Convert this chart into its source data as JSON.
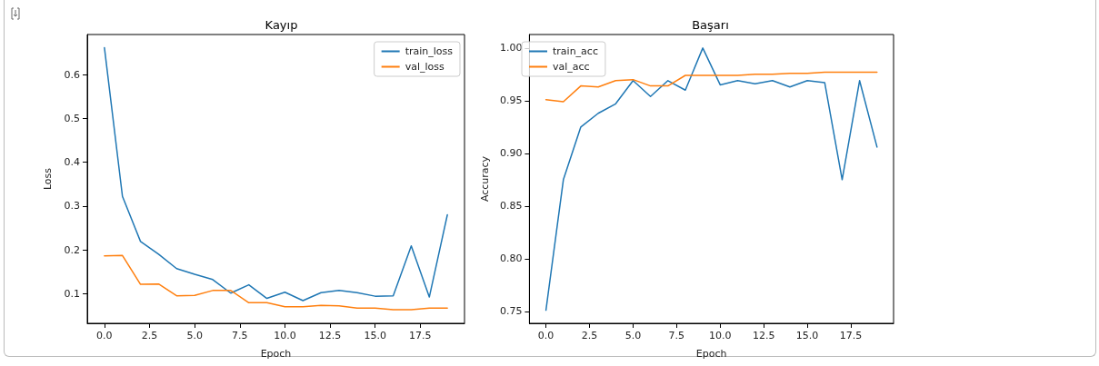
{
  "chart_data": [
    {
      "type": "line",
      "title": "Kayıp",
      "xlabel": "Epoch",
      "ylabel": "Loss",
      "x": [
        0,
        1,
        2,
        3,
        4,
        5,
        6,
        7,
        8,
        9,
        10,
        11,
        12,
        13,
        14,
        15,
        16,
        17,
        18,
        19
      ],
      "series": [
        {
          "name": "train_loss",
          "color": "#1f77b4",
          "values": [
            0.662,
            0.322,
            0.219,
            0.19,
            0.157,
            0.144,
            0.132,
            0.101,
            0.12,
            0.089,
            0.103,
            0.084,
            0.102,
            0.107,
            0.102,
            0.094,
            0.095,
            0.209,
            0.092,
            0.28
          ]
        },
        {
          "name": "val_loss",
          "color": "#ff7f0e",
          "values": [
            0.186,
            0.187,
            0.121,
            0.122,
            0.095,
            0.096,
            0.107,
            0.107,
            0.079,
            0.079,
            0.07,
            0.07,
            0.073,
            0.072,
            0.067,
            0.067,
            0.063,
            0.063,
            0.067,
            0.067
          ]
        }
      ],
      "xlim": [
        -0.95,
        19.95
      ],
      "xticks": [
        {
          "value": 0,
          "label": "0.0"
        },
        2.5,
        {
          "value": 5,
          "label": "5.0"
        },
        7.5,
        {
          "value": 10,
          "label": "10.0"
        },
        12.5,
        {
          "value": 15,
          "label": "15.0"
        },
        17.5
      ],
      "ylim": [
        0.032,
        0.692
      ],
      "yticks": [
        0.1,
        0.2,
        0.3,
        0.4,
        0.5,
        0.6
      ],
      "grid": false,
      "legend": "top right",
      "marker": "none",
      "line_style": "solid"
    },
    {
      "type": "line",
      "title": "Başarı",
      "xlabel": "Epoch",
      "ylabel": "Accuracy",
      "x": [
        0,
        1,
        2,
        3,
        4,
        5,
        6,
        7,
        8,
        9,
        10,
        11,
        12,
        13,
        14,
        15,
        16,
        17,
        18,
        19
      ],
      "series": [
        {
          "name": "train_acc",
          "color": "#1f77b4",
          "values": [
            0.751,
            0.875,
            0.925,
            0.938,
            0.947,
            0.969,
            0.954,
            0.969,
            0.96,
            1.0,
            0.965,
            0.969,
            0.966,
            0.969,
            0.963,
            0.969,
            0.967,
            0.875,
            0.969,
            0.906
          ]
        },
        {
          "name": "val_acc",
          "color": "#ff7f0e",
          "values": [
            0.951,
            0.949,
            0.964,
            0.963,
            0.969,
            0.97,
            0.964,
            0.964,
            0.974,
            0.974,
            0.974,
            0.974,
            0.975,
            0.975,
            0.976,
            0.976,
            0.977,
            0.977,
            0.977,
            0.977
          ]
        }
      ],
      "xlim": [
        -0.95,
        19.95
      ],
      "xticks": [
        {
          "value": 0,
          "label": "0.0"
        },
        2.5,
        {
          "value": 5,
          "label": "5.0"
        },
        7.5,
        {
          "value": 10,
          "label": "10.0"
        },
        12.5,
        {
          "value": 15,
          "label": "15.0"
        },
        17.5
      ],
      "ylim": [
        0.7386,
        1.0128
      ],
      "yticks": [
        0.75,
        {
          "value": 0.8,
          "label": "0.80"
        },
        0.85,
        {
          "value": 0.9,
          "label": "0.90"
        },
        0.95,
        {
          "value": 1,
          "label": "1.00"
        }
      ],
      "grid": false,
      "legend": "top left",
      "marker": "none",
      "line_style": "solid"
    }
  ]
}
